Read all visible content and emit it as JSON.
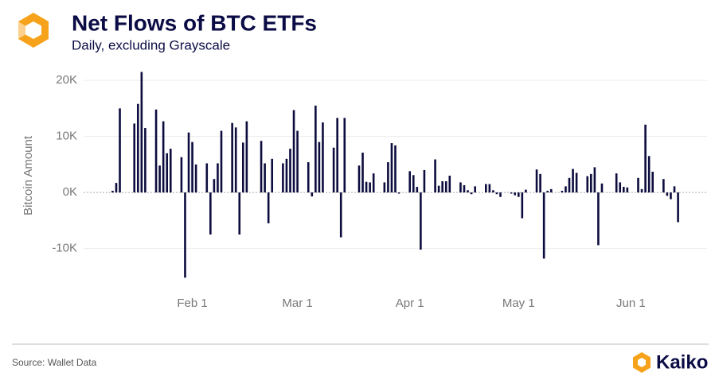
{
  "chart_data": {
    "type": "bar",
    "title": "Net Flows of BTC ETFs",
    "subtitle": "Daily, excluding Grayscale",
    "y_label": "Bitcoin Amount",
    "source": "Source: Wallet Data",
    "brand": "Kaiko",
    "color": "#0c0c3e",
    "grid": true,
    "categories": [
      "Jan 10",
      "Jan 11",
      "Jan 12",
      "Jan 13",
      "Jan 14",
      "Jan 15",
      "Jan 16",
      "Jan 17",
      "Jan 18",
      "Jan 19",
      "Jan 20",
      "Jan 21",
      "Jan 22",
      "Jan 23",
      "Jan 24",
      "Jan 25",
      "Jan 26",
      "Jan 27",
      "Jan 28",
      "Jan 29",
      "Jan 30",
      "Jan 31",
      "Feb 1",
      "Feb 2",
      "Feb 3",
      "Feb 4",
      "Feb 5",
      "Feb 6",
      "Feb 7",
      "Feb 8",
      "Feb 9",
      "Feb 10",
      "Feb 11",
      "Feb 12",
      "Feb 13",
      "Feb 14",
      "Feb 15",
      "Feb 16",
      "Feb 17",
      "Feb 18",
      "Feb 19",
      "Feb 20",
      "Feb 21",
      "Feb 22",
      "Feb 23",
      "Feb 24",
      "Feb 25",
      "Feb 26",
      "Feb 27",
      "Feb 28",
      "Feb 29",
      "Mar 1",
      "Mar 2",
      "Mar 3",
      "Mar 4",
      "Mar 5",
      "Mar 6",
      "Mar 7",
      "Mar 8",
      "Mar 9",
      "Mar 10",
      "Mar 11",
      "Mar 12",
      "Mar 13",
      "Mar 14",
      "Mar 15",
      "Mar 16",
      "Mar 17",
      "Mar 18",
      "Mar 19",
      "Mar 20",
      "Mar 21",
      "Mar 22",
      "Mar 23",
      "Mar 24",
      "Mar 25",
      "Mar 26",
      "Mar 27",
      "Mar 28",
      "Mar 29",
      "Mar 30",
      "Mar 31",
      "Apr 1",
      "Apr 2",
      "Apr 3",
      "Apr 4",
      "Apr 5",
      "Apr 6",
      "Apr 7",
      "Apr 8",
      "Apr 9",
      "Apr 10",
      "Apr 11",
      "Apr 12",
      "Apr 13",
      "Apr 14",
      "Apr 15",
      "Apr 16",
      "Apr 17",
      "Apr 18",
      "Apr 19",
      "Apr 20",
      "Apr 21",
      "Apr 22",
      "Apr 23",
      "Apr 24",
      "Apr 25",
      "Apr 26",
      "Apr 27",
      "Apr 28",
      "Apr 29",
      "Apr 30",
      "May 1",
      "May 2",
      "May 3",
      "May 4",
      "May 5",
      "May 6",
      "May 7",
      "May 8",
      "May 9",
      "May 10",
      "May 11",
      "May 12",
      "May 13",
      "May 14",
      "May 15",
      "May 16",
      "May 17",
      "May 18",
      "May 19",
      "May 20",
      "May 21",
      "May 22",
      "May 23",
      "May 24",
      "May 25",
      "May 26",
      "May 27",
      "May 28",
      "May 29",
      "May 30",
      "May 31",
      "Jun 1",
      "Jun 2",
      "Jun 3",
      "Jun 4",
      "Jun 5",
      "Jun 6",
      "Jun 7",
      "Jun 8",
      "Jun 9",
      "Jun 10",
      "Jun 11",
      "Jun 12",
      "Jun 13",
      "Jun 14"
    ],
    "values": [
      300,
      1700,
      15000,
      null,
      null,
      null,
      12300,
      15800,
      21500,
      11500,
      null,
      null,
      14800,
      4800,
      12700,
      7000,
      7800,
      null,
      null,
      6300,
      -15200,
      10700,
      9000,
      5000,
      null,
      null,
      5200,
      -7500,
      2400,
      5200,
      11000,
      null,
      null,
      12400,
      11600,
      -7500,
      8900,
      12700,
      null,
      null,
      null,
      9200,
      5200,
      -5500,
      6000,
      null,
      null,
      5200,
      6000,
      7800,
      14700,
      11000,
      null,
      null,
      5400,
      -700,
      15500,
      9000,
      12500,
      null,
      null,
      8000,
      13300,
      -8000,
      13300,
      null,
      null,
      null,
      4800,
      7100,
      1900,
      1800,
      3400,
      null,
      null,
      1800,
      5400,
      8800,
      8400,
      -200,
      null,
      null,
      3800,
      3100,
      1000,
      -10200,
      4000,
      null,
      null,
      5900,
      1200,
      2000,
      2000,
      3000,
      null,
      null,
      1800,
      1300,
      400,
      -300,
      1100,
      null,
      null,
      1500,
      1500,
      400,
      -300,
      -800,
      null,
      null,
      -200,
      -500,
      -800,
      -4600,
      500,
      null,
      null,
      4100,
      3300,
      -11800,
      300,
      600,
      null,
      null,
      300,
      1100,
      2600,
      4200,
      3500,
      null,
      null,
      2900,
      3300,
      4500,
      -9400,
      1600,
      null,
      null,
      null,
      3400,
      1800,
      1000,
      900,
      null,
      null,
      2600,
      600,
      12100,
      6500,
      3700,
      null,
      null,
      2400,
      -600,
      -1200,
      1100,
      -5300
    ],
    "xticks": [
      "Feb 1",
      "Mar 1",
      "Apr 1",
      "May 1",
      "Jun 1"
    ],
    "ylim": [
      -17000,
      22000
    ],
    "yticks": [
      {
        "value": -10000,
        "label": "-10K"
      },
      {
        "value": 0,
        "label": "0K"
      },
      {
        "value": 10000,
        "label": "10K"
      },
      {
        "value": 20000,
        "label": "20K"
      }
    ]
  }
}
